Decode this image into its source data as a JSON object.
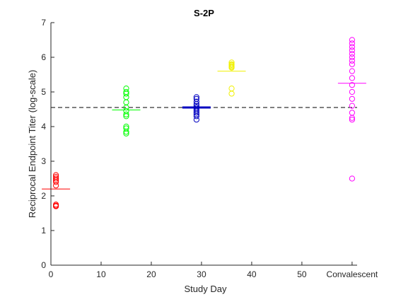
{
  "chart_data": {
    "type": "scatter",
    "title": "S-2P",
    "xlabel": "Study Day",
    "ylabel": "Reciprocal Endpoint Titer (log-scale)",
    "xlim": [
      0,
      61
    ],
    "ylim": [
      0,
      7
    ],
    "x_ticks": [
      {
        "value": 0,
        "label": "0"
      },
      {
        "value": 10,
        "label": "10"
      },
      {
        "value": 20,
        "label": "20"
      },
      {
        "value": 30,
        "label": "30"
      },
      {
        "value": 40,
        "label": "40"
      },
      {
        "value": 50,
        "label": "50"
      },
      {
        "value": 60,
        "label": "Convalescent"
      }
    ],
    "y_ticks": [
      0,
      1,
      2,
      3,
      4,
      5,
      6,
      7
    ],
    "reference_line": {
      "y": 4.55,
      "style": "dashed",
      "color": "#000000"
    },
    "series": [
      {
        "x": 1,
        "color": "#ff0000",
        "mean": 2.2,
        "values": [
          2.6,
          2.55,
          2.5,
          2.45,
          2.4,
          2.3,
          1.75,
          1.72,
          1.7
        ]
      },
      {
        "x": 15,
        "color": "#00ff00",
        "mean": 4.48,
        "values": [
          5.1,
          5.0,
          4.95,
          4.85,
          4.7,
          4.55,
          4.45,
          4.35,
          4.3,
          4.0,
          3.95,
          3.85,
          3.8
        ]
      },
      {
        "x": 29,
        "color": "#0000c0",
        "mean": 4.55,
        "values": [
          4.85,
          4.8,
          4.72,
          4.65,
          4.6,
          4.55,
          4.5,
          4.45,
          4.4,
          4.35,
          4.3,
          4.2
        ]
      },
      {
        "x": 36,
        "color": "#f0f000",
        "mean": 5.6,
        "values": [
          5.85,
          5.8,
          5.78,
          5.75,
          5.72,
          5.7,
          5.1,
          4.95
        ]
      },
      {
        "x": 60,
        "color": "#ff00ff",
        "mean": 5.25,
        "values": [
          6.5,
          6.4,
          6.3,
          6.2,
          6.1,
          6.0,
          5.9,
          5.8,
          5.6,
          5.4,
          5.2,
          5.0,
          4.8,
          4.6,
          4.4,
          4.25,
          4.2,
          2.5
        ]
      }
    ]
  }
}
